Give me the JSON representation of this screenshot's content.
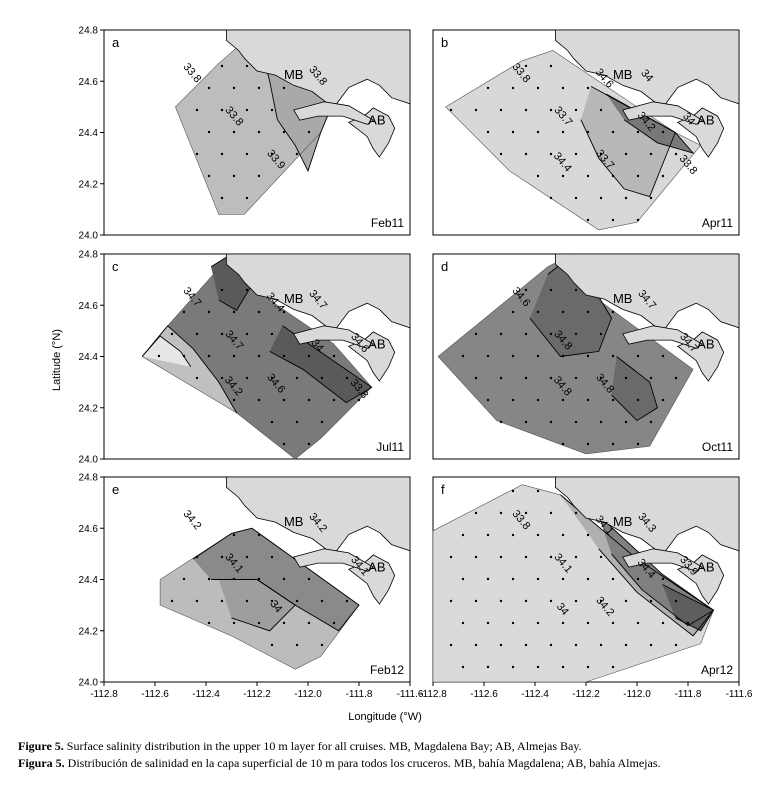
{
  "chart_data": [
    {
      "panel": "a",
      "cruise": "Feb11",
      "type": "contour-map",
      "xlim": [
        -112.8,
        -111.6
      ],
      "ylim": [
        24.0,
        24.8
      ],
      "contour_levels": [
        "33.8",
        "33.8",
        "33.9",
        "33.8"
      ],
      "polygon": [
        [
          -112.52,
          24.5
        ],
        [
          -112.35,
          24.67
        ],
        [
          -112.2,
          24.8
        ],
        [
          -111.9,
          24.52
        ],
        [
          -111.95,
          24.4
        ],
        [
          -112.25,
          24.08
        ],
        [
          -112.35,
          24.08
        ]
      ],
      "regions": [
        {
          "fill": "#bdbdbd",
          "pts": [
            [
              -112.52,
              24.5
            ],
            [
              -112.35,
              24.67
            ],
            [
              -112.2,
              24.8
            ],
            [
              -111.9,
              24.52
            ],
            [
              -111.95,
              24.4
            ],
            [
              -112.25,
              24.08
            ],
            [
              -112.35,
              24.08
            ]
          ]
        },
        {
          "fill": "#a9a9a9",
          "pts": [
            [
              -112.2,
              24.8
            ],
            [
              -112.15,
              24.6
            ],
            [
              -112.12,
              24.45
            ],
            [
              -112.05,
              24.35
            ],
            [
              -112.0,
              24.25
            ],
            [
              -111.95,
              24.4
            ],
            [
              -111.9,
              24.52
            ]
          ]
        }
      ]
    },
    {
      "panel": "b",
      "cruise": "Apr11",
      "type": "contour-map",
      "xlim": [
        -112.8,
        -111.6
      ],
      "ylim": [
        24.0,
        24.8
      ],
      "contour_levels": [
        "33.8",
        "33.7",
        "33.7",
        "34",
        "34",
        "34.4",
        "34.6",
        "34.2",
        "33.8"
      ],
      "polygon": [
        [
          -112.75,
          24.5
        ],
        [
          -112.45,
          24.68
        ],
        [
          -112.33,
          24.72
        ],
        [
          -112.15,
          24.6
        ],
        [
          -111.85,
          24.4
        ],
        [
          -111.75,
          24.35
        ],
        [
          -112.0,
          24.05
        ],
        [
          -112.15,
          24.02
        ],
        [
          -112.5,
          24.25
        ]
      ],
      "regions": [
        {
          "fill": "#d8d8d8",
          "pts": [
            [
              -112.75,
              24.5
            ],
            [
              -112.45,
              24.68
            ],
            [
              -112.33,
              24.72
            ],
            [
              -112.15,
              24.6
            ],
            [
              -111.85,
              24.4
            ],
            [
              -111.75,
              24.35
            ],
            [
              -112.0,
              24.05
            ],
            [
              -112.15,
              24.02
            ],
            [
              -112.5,
              24.25
            ]
          ]
        },
        {
          "fill": "#b8b8b8",
          "pts": [
            [
              -112.18,
              24.58
            ],
            [
              -111.85,
              24.4
            ],
            [
              -111.95,
              24.15
            ],
            [
              -112.05,
              24.18
            ],
            [
              -112.15,
              24.3
            ],
            [
              -112.22,
              24.45
            ]
          ]
        },
        {
          "fill": "#787878",
          "pts": [
            [
              -112.12,
              24.55
            ],
            [
              -111.85,
              24.4
            ],
            [
              -111.78,
              24.32
            ],
            [
              -111.92,
              24.36
            ],
            [
              -112.05,
              24.45
            ]
          ]
        }
      ]
    },
    {
      "panel": "c",
      "cruise": "Jul11",
      "type": "contour-map",
      "xlim": [
        -112.8,
        -111.6
      ],
      "ylim": [
        24.0,
        24.8
      ],
      "contour_levels": [
        "34.7",
        "34.7",
        "34.6",
        "34.7",
        "34.6",
        "34.2",
        "34.4",
        "34",
        "33.8"
      ],
      "polygon": [
        [
          -112.55,
          24.52
        ],
        [
          -112.3,
          24.8
        ],
        [
          -112.15,
          24.62
        ],
        [
          -111.9,
          24.45
        ],
        [
          -111.75,
          24.28
        ],
        [
          -111.95,
          24.08
        ],
        [
          -112.05,
          24.0
        ],
        [
          -112.28,
          24.18
        ],
        [
          -112.65,
          24.4
        ]
      ],
      "regions": [
        {
          "fill": "#7a7a7a",
          "pts": [
            [
              -112.55,
              24.52
            ],
            [
              -112.3,
              24.8
            ],
            [
              -112.15,
              24.62
            ],
            [
              -111.9,
              24.45
            ],
            [
              -111.75,
              24.28
            ],
            [
              -111.95,
              24.08
            ],
            [
              -112.05,
              24.0
            ],
            [
              -112.28,
              24.18
            ],
            [
              -112.65,
              24.4
            ]
          ]
        },
        {
          "fill": "#c0c0c0",
          "pts": [
            [
              -112.65,
              24.4
            ],
            [
              -112.55,
              24.52
            ],
            [
              -112.45,
              24.43
            ],
            [
              -112.35,
              24.3
            ],
            [
              -112.28,
              24.18
            ]
          ]
        },
        {
          "fill": "#e6e6e6",
          "pts": [
            [
              -112.65,
              24.4
            ],
            [
              -112.58,
              24.48
            ],
            [
              -112.5,
              24.42
            ],
            [
              -112.46,
              24.36
            ]
          ]
        },
        {
          "fill": "#5a5a5a",
          "pts": [
            [
              -112.38,
              24.75
            ],
            [
              -112.3,
              24.8
            ],
            [
              -112.22,
              24.68
            ],
            [
              -112.28,
              24.58
            ],
            [
              -112.35,
              24.62
            ]
          ]
        },
        {
          "fill": "#5a5a5a",
          "pts": [
            [
              -112.1,
              24.52
            ],
            [
              -111.75,
              24.28
            ],
            [
              -111.85,
              24.22
            ],
            [
              -112.02,
              24.35
            ],
            [
              -112.15,
              24.42
            ]
          ]
        }
      ]
    },
    {
      "panel": "d",
      "cruise": "Oct11",
      "type": "contour-map",
      "xlim": [
        -112.8,
        -111.6
      ],
      "ylim": [
        24.0,
        24.8
      ],
      "contour_levels": [
        "34.6",
        "34.8",
        "34.8",
        "34.7",
        "34.7",
        "34.8"
      ],
      "polygon": [
        [
          -112.78,
          24.4
        ],
        [
          -112.35,
          24.75
        ],
        [
          -112.25,
          24.8
        ],
        [
          -112.15,
          24.62
        ],
        [
          -111.78,
          24.35
        ],
        [
          -111.95,
          24.05
        ],
        [
          -112.2,
          24.02
        ],
        [
          -112.55,
          24.15
        ]
      ],
      "regions": [
        {
          "fill": "#868686",
          "pts": [
            [
              -112.78,
              24.4
            ],
            [
              -112.35,
              24.75
            ],
            [
              -112.25,
              24.8
            ],
            [
              -112.15,
              24.62
            ],
            [
              -111.78,
              24.35
            ],
            [
              -111.95,
              24.05
            ],
            [
              -112.2,
              24.02
            ],
            [
              -112.55,
              24.15
            ]
          ]
        },
        {
          "fill": "#6a6a6a",
          "pts": [
            [
              -112.35,
              24.72
            ],
            [
              -112.25,
              24.8
            ],
            [
              -112.1,
              24.55
            ],
            [
              -112.15,
              24.42
            ],
            [
              -112.3,
              24.4
            ],
            [
              -112.42,
              24.55
            ]
          ]
        },
        {
          "fill": "#6a6a6a",
          "pts": [
            [
              -112.08,
              24.4
            ],
            [
              -111.95,
              24.3
            ],
            [
              -111.92,
              24.2
            ],
            [
              -112.0,
              24.15
            ],
            [
              -112.1,
              24.25
            ]
          ]
        }
      ]
    },
    {
      "panel": "e",
      "cruise": "Feb12",
      "type": "contour-map",
      "xlim": [
        -112.8,
        -111.6
      ],
      "ylim": [
        24.0,
        24.8
      ],
      "contour_levels": [
        "34.2",
        "34.1",
        "34",
        "34.2",
        "34.1"
      ],
      "polygon": [
        [
          -112.58,
          24.4
        ],
        [
          -112.3,
          24.58
        ],
        [
          -112.22,
          24.6
        ],
        [
          -111.8,
          24.3
        ],
        [
          -111.95,
          24.1
        ],
        [
          -112.05,
          24.05
        ],
        [
          -112.3,
          24.18
        ],
        [
          -112.58,
          24.3
        ]
      ],
      "regions": [
        {
          "fill": "#bcbcbc",
          "pts": [
            [
              -112.58,
              24.4
            ],
            [
              -112.3,
              24.58
            ],
            [
              -112.22,
              24.6
            ],
            [
              -111.8,
              24.3
            ],
            [
              -111.95,
              24.1
            ],
            [
              -112.05,
              24.05
            ],
            [
              -112.3,
              24.18
            ],
            [
              -112.58,
              24.3
            ]
          ]
        },
        {
          "fill": "#8a8a8a",
          "pts": [
            [
              -112.45,
              24.48
            ],
            [
              -112.3,
              24.58
            ],
            [
              -112.22,
              24.6
            ],
            [
              -111.8,
              24.3
            ],
            [
              -111.88,
              24.2
            ],
            [
              -112.05,
              24.3
            ],
            [
              -112.2,
              24.4
            ],
            [
              -112.38,
              24.4
            ]
          ]
        },
        {
          "fill": "#9e9e9e",
          "pts": [
            [
              -112.35,
              24.4
            ],
            [
              -112.2,
              24.4
            ],
            [
              -112.05,
              24.3
            ],
            [
              -112.15,
              24.2
            ],
            [
              -112.3,
              24.25
            ]
          ]
        }
      ]
    },
    {
      "panel": "f",
      "cruise": "Apr12",
      "type": "contour-map",
      "xlim": [
        -112.8,
        -111.6
      ],
      "ylim": [
        24.0,
        24.8
      ],
      "contour_levels": [
        "33.8",
        "34.1",
        "34.2",
        "34.3",
        "33.9",
        "34",
        "34.1",
        "34.4"
      ],
      "polygon": [
        [
          -112.8,
          24.59
        ],
        [
          -112.45,
          24.77
        ],
        [
          -112.3,
          24.73
        ],
        [
          -112.0,
          24.48
        ],
        [
          -111.7,
          24.28
        ],
        [
          -111.75,
          24.15
        ],
        [
          -112.2,
          24.0
        ],
        [
          -112.8,
          24.0
        ]
      ],
      "regions": [
        {
          "fill": "#dadada",
          "pts": [
            [
              -112.8,
              24.59
            ],
            [
              -112.45,
              24.77
            ],
            [
              -112.3,
              24.73
            ],
            [
              -112.0,
              24.48
            ],
            [
              -111.7,
              24.28
            ],
            [
              -111.75,
              24.15
            ],
            [
              -112.2,
              24.0
            ],
            [
              -112.8,
              24.0
            ]
          ]
        },
        {
          "fill": "#b0b0b0",
          "pts": [
            [
              -112.3,
              24.73
            ],
            [
              -112.0,
              24.48
            ],
            [
              -111.7,
              24.28
            ],
            [
              -111.78,
              24.18
            ],
            [
              -112.0,
              24.35
            ],
            [
              -112.15,
              24.52
            ]
          ]
        },
        {
          "fill": "#808080",
          "pts": [
            [
              -112.15,
              24.65
            ],
            [
              -111.9,
              24.42
            ],
            [
              -111.7,
              24.28
            ],
            [
              -111.8,
              24.22
            ],
            [
              -111.98,
              24.36
            ],
            [
              -112.1,
              24.5
            ]
          ]
        },
        {
          "fill": "#5e5e5e",
          "pts": [
            [
              -111.9,
              24.38
            ],
            [
              -111.7,
              24.28
            ],
            [
              -111.75,
              24.2
            ],
            [
              -111.85,
              24.25
            ]
          ]
        }
      ]
    }
  ],
  "figure": {
    "panel_labels": [
      "a",
      "b",
      "c",
      "d",
      "e",
      "f"
    ],
    "cruise_labels": [
      "Feb11",
      "Apr11",
      "Jul11",
      "Oct11",
      "Feb12",
      "Apr12"
    ],
    "bay_labels": {
      "mb": "MB",
      "ab": "AB"
    },
    "y_ticks": [
      "24.8",
      "24.6",
      "24.4",
      "24.2",
      "24.0"
    ],
    "x_ticks": [
      "-112.8",
      "-112.6",
      "-112.4",
      "-112.2",
      "-112.0",
      "-111.8",
      "-111.6"
    ],
    "x_axis_title": "Longitude (°W)",
    "y_axis_title": "Latitude (°N)"
  },
  "caption": {
    "en_bold": "Figure 5.",
    "en_text": " Surface salinity distribution in the upper 10 m layer for all cruises. MB, Magdalena Bay; AB, Almejas Bay.",
    "es_bold": "Figura 5.",
    "es_text": " Distribución de salinidad en la capa superficial de 10 m para todos los cruceros. MB, bahía Magdalena; AB, bahía Almejas."
  }
}
